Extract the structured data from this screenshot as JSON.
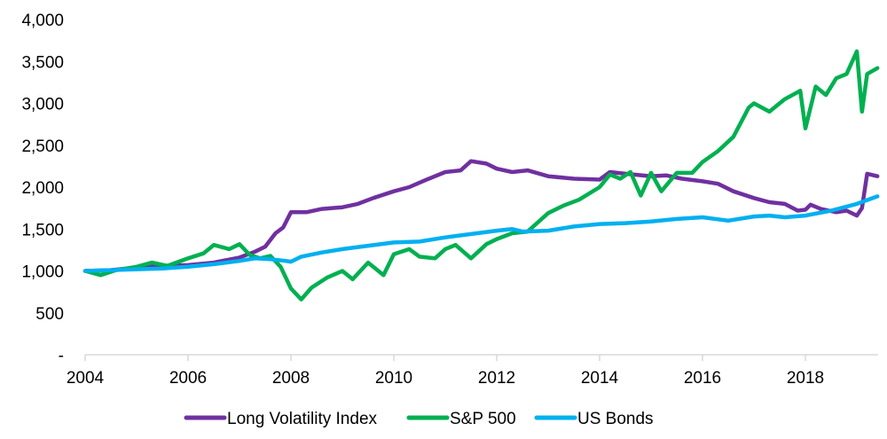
{
  "chart_data": {
    "type": "line",
    "title": "",
    "xlabel": "",
    "ylabel": "",
    "xlim": [
      2004,
      2019.4
    ],
    "ylim": [
      0,
      4000
    ],
    "grid": false,
    "legend_position": "bottom",
    "y_ticks": [
      {
        "value": 0,
        "label": "-"
      },
      {
        "value": 500,
        "label": "500"
      },
      {
        "value": 1000,
        "label": "1,000"
      },
      {
        "value": 1500,
        "label": "1,500"
      },
      {
        "value": 2000,
        "label": "2,000"
      },
      {
        "value": 2500,
        "label": "2,500"
      },
      {
        "value": 3000,
        "label": "3,000"
      },
      {
        "value": 3500,
        "label": "3,500"
      },
      {
        "value": 4000,
        "label": "4,000"
      }
    ],
    "x_ticks": [
      {
        "value": 2004,
        "label": "2004"
      },
      {
        "value": 2006,
        "label": "2006"
      },
      {
        "value": 2008,
        "label": "2008"
      },
      {
        "value": 2010,
        "label": "2010"
      },
      {
        "value": 2012,
        "label": "2012"
      },
      {
        "value": 2014,
        "label": "2014"
      },
      {
        "value": 2016,
        "label": "2016"
      },
      {
        "value": 2018,
        "label": "2018"
      }
    ],
    "series": [
      {
        "name": "Long Volatility Index",
        "color": "#7030A0",
        "x": [
          2004,
          2004.5,
          2005,
          2005.5,
          2006,
          2006.5,
          2007,
          2007.3,
          2007.5,
          2007.7,
          2007.85,
          2008,
          2008.3,
          2008.6,
          2009,
          2009.3,
          2009.6,
          2010,
          2010.3,
          2010.6,
          2011,
          2011.3,
          2011.5,
          2011.8,
          2012,
          2012.3,
          2012.6,
          2013,
          2013.5,
          2014,
          2014.2,
          2014.5,
          2015,
          2015.3,
          2015.6,
          2016,
          2016.3,
          2016.6,
          2017,
          2017.3,
          2017.6,
          2017.85,
          2018,
          2018.1,
          2018.3,
          2018.6,
          2018.8,
          2019,
          2019.1,
          2019.2,
          2019.4
        ],
        "values": [
          1000,
          1010,
          1040,
          1060,
          1070,
          1100,
          1160,
          1230,
          1290,
          1450,
          1520,
          1700,
          1700,
          1740,
          1760,
          1800,
          1870,
          1950,
          2000,
          2080,
          2180,
          2200,
          2310,
          2280,
          2220,
          2180,
          2200,
          2130,
          2100,
          2090,
          2180,
          2160,
          2130,
          2140,
          2100,
          2070,
          2040,
          1950,
          1870,
          1820,
          1800,
          1720,
          1730,
          1790,
          1740,
          1700,
          1720,
          1660,
          1750,
          2160,
          2130
        ]
      },
      {
        "name": "S&P 500",
        "color": "#00B050",
        "x": [
          2004,
          2004.3,
          2004.6,
          2005,
          2005.3,
          2005.6,
          2006,
          2006.3,
          2006.5,
          2006.8,
          2007,
          2007.2,
          2007.4,
          2007.6,
          2007.8,
          2008,
          2008.2,
          2008.4,
          2008.7,
          2009,
          2009.2,
          2009.5,
          2009.8,
          2010,
          2010.3,
          2010.5,
          2010.8,
          2011,
          2011.2,
          2011.5,
          2011.8,
          2012,
          2012.3,
          2012.6,
          2013,
          2013.3,
          2013.6,
          2014,
          2014.2,
          2014.4,
          2014.6,
          2014.8,
          2015,
          2015.2,
          2015.5,
          2015.8,
          2016,
          2016.3,
          2016.6,
          2016.9,
          2017,
          2017.3,
          2017.6,
          2017.9,
          2018,
          2018.2,
          2018.4,
          2018.6,
          2018.8,
          2019,
          2019.1,
          2019.2,
          2019.4
        ],
        "values": [
          1000,
          950,
          1010,
          1050,
          1100,
          1060,
          1150,
          1210,
          1310,
          1260,
          1320,
          1190,
          1150,
          1180,
          1050,
          790,
          660,
          800,
          920,
          1000,
          900,
          1100,
          950,
          1200,
          1260,
          1170,
          1150,
          1260,
          1310,
          1150,
          1320,
          1380,
          1450,
          1470,
          1690,
          1780,
          1850,
          2000,
          2150,
          2100,
          2180,
          1900,
          2170,
          1950,
          2170,
          2170,
          2300,
          2430,
          2600,
          2950,
          3000,
          2900,
          3050,
          3150,
          2700,
          3200,
          3100,
          3300,
          3350,
          3620,
          2900,
          3350,
          3420
        ]
      },
      {
        "name": "US Bonds",
        "color": "#00B0F0",
        "x": [
          2004,
          2004.5,
          2005,
          2005.5,
          2006,
          2006.5,
          2007,
          2007.3,
          2007.6,
          2007.9,
          2008,
          2008.2,
          2008.6,
          2009,
          2009.5,
          2010,
          2010.5,
          2011,
          2011.5,
          2012,
          2012.3,
          2012.5,
          2013,
          2013.5,
          2014,
          2014.5,
          2015,
          2015.5,
          2016,
          2016.5,
          2017,
          2017.3,
          2017.6,
          2018,
          2018.5,
          2019,
          2019.4
        ],
        "values": [
          1000,
          1010,
          1020,
          1030,
          1050,
          1080,
          1120,
          1150,
          1140,
          1120,
          1110,
          1170,
          1220,
          1260,
          1300,
          1340,
          1350,
          1400,
          1440,
          1480,
          1500,
          1470,
          1480,
          1530,
          1560,
          1570,
          1590,
          1620,
          1640,
          1600,
          1650,
          1660,
          1640,
          1660,
          1720,
          1800,
          1890
        ]
      }
    ]
  }
}
